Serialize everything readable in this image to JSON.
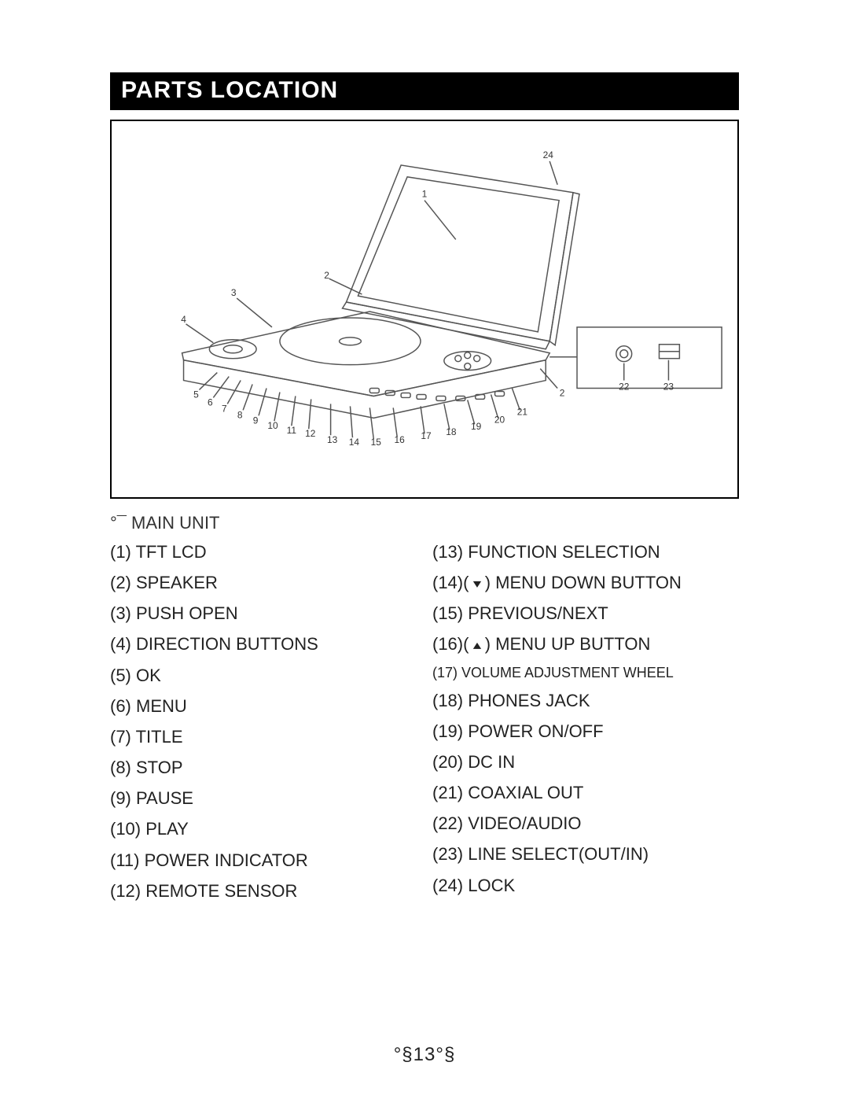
{
  "title": "PARTS LOCATION",
  "section_label": "°¯ MAIN UNIT",
  "parts_left": [
    {
      "n": "1",
      "label": "TFT LCD"
    },
    {
      "n": "2",
      "label": "SPEAKER"
    },
    {
      "n": "3",
      "label": "PUSH OPEN"
    },
    {
      "n": "4",
      "label": "DIRECTION BUTTONS"
    },
    {
      "n": "5",
      "label": "OK"
    },
    {
      "n": "6",
      "label": "MENU"
    },
    {
      "n": "7",
      "label": "TITLE"
    },
    {
      "n": "8",
      "label": "STOP"
    },
    {
      "n": "9",
      "label": "PAUSE"
    },
    {
      "n": "10",
      "label": "PLAY"
    },
    {
      "n": "11",
      "label": "POWER INDICATOR"
    },
    {
      "n": "12",
      "label": "REMOTE SENSOR"
    }
  ],
  "parts_right": [
    {
      "n": "13",
      "label": "FUNCTION SELECTION"
    },
    {
      "n": "14",
      "label": "MENU DOWN BUTTON",
      "icon": "down"
    },
    {
      "n": "15",
      "label": "PREVIOUS/NEXT"
    },
    {
      "n": "16",
      "label": "MENU UP BUTTON",
      "icon": "up"
    },
    {
      "n": "17",
      "label": "VOLUME ADJUSTMENT WHEEL",
      "small": true
    },
    {
      "n": "18",
      "label": "PHONES JACK"
    },
    {
      "n": "19",
      "label": "POWER ON/OFF"
    },
    {
      "n": "20",
      "label": "DC IN"
    },
    {
      "n": "21",
      "label": "COAXIAL OUT"
    },
    {
      "n": "22",
      "label": "VIDEO/AUDIO"
    },
    {
      "n": "23",
      "label": "LINE SELECT(OUT/IN)"
    },
    {
      "n": "24",
      "label": "LOCK"
    }
  ],
  "page_number": "°§13°§",
  "colors": {
    "title_bg": "#000000",
    "title_fg": "#ffffff",
    "line": "#444444",
    "text": "#222222"
  },
  "figure": {
    "callouts_main": [
      "1",
      "2",
      "3",
      "4",
      "5",
      "6",
      "7",
      "8",
      "9",
      "10",
      "11",
      "12",
      "13",
      "14",
      "15",
      "16",
      "17",
      "18",
      "19",
      "20",
      "21",
      "24",
      "2"
    ],
    "callouts_detail": [
      "22",
      "23"
    ]
  }
}
